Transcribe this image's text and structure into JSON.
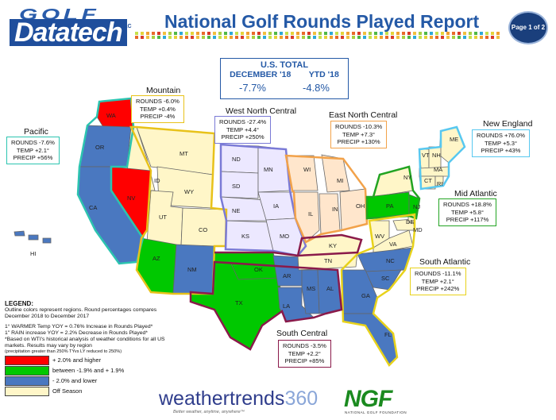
{
  "header": {
    "logo_top": "GOLF",
    "logo_main": "Datatech",
    "logo_llc": "LLC",
    "title": "National Golf Rounds Played Report",
    "page_label": "Page 1 of 2"
  },
  "us_total": {
    "heading": "U.S. TOTAL",
    "month_label": "DECEMBER '18",
    "ytd_label": "YTD '18",
    "month_value": "-7.7%",
    "ytd_value": "-4.8%"
  },
  "regions": {
    "pacific": {
      "name": "Pacific",
      "rounds": "ROUNDS  -7.6%",
      "temp": "TEMP  +2.1°",
      "precip": "PRECIP  +56%",
      "border": "#2cc4b0"
    },
    "mountain": {
      "name": "Mountain",
      "rounds": "ROUNDS  -6.0%",
      "temp": "TEMP  +0.4%",
      "precip": "PRECIP  -4%",
      "border": "#e8c21a"
    },
    "west_north_central": {
      "name": "West North Central",
      "rounds": "ROUNDS  -27.4%",
      "temp": "TEMP  +4.4°",
      "precip": "PRECIP  +250%",
      "border": "#7a7ad6"
    },
    "east_north_central": {
      "name": "East North Central",
      "rounds": "ROUNDS  -10.3%",
      "temp": "TEMP  +7.3°",
      "precip": "PRECIP  +130%",
      "border": "#f2a24a"
    },
    "new_england": {
      "name": "New England",
      "rounds": "ROUNDS  +76.0%",
      "temp": "TEMP  +5.3°",
      "precip": "PRECIP  +43%",
      "border": "#58c8f0"
    },
    "mid_atlantic": {
      "name": "Mid Atlantic",
      "rounds": "ROUNDS  +18.8%",
      "temp": "TEMP  +5.8°",
      "precip": "PRECIP  +117%",
      "border": "#22a422"
    },
    "south_atlantic": {
      "name": "South Atlantic",
      "rounds": "ROUNDS  -11.1%",
      "temp": "TEMP  +2.1°",
      "precip": "PRECIP  +242%",
      "border": "#e8d21a"
    },
    "south_central": {
      "name": "South Central",
      "rounds": "ROUNDS  -3.5%",
      "temp": "TEMP  +2.2°",
      "precip": "PRECIP  +85%",
      "border": "#8a1a4a"
    }
  },
  "state_labels": [
    "WA",
    "OR",
    "CA",
    "NV",
    "ID",
    "MT",
    "WY",
    "UT",
    "CO",
    "AZ",
    "NM",
    "HI",
    "ND",
    "SD",
    "NE",
    "KS",
    "OK",
    "TX",
    "MN",
    "IA",
    "MO",
    "AR",
    "LA",
    "WI",
    "IL",
    "MI",
    "IN",
    "OH",
    "KY",
    "TN",
    "MS",
    "AL",
    "GA",
    "FL",
    "SC",
    "NC",
    "VA",
    "WV",
    "PA",
    "NY",
    "NJ",
    "DE",
    "MD",
    "ME",
    "VT",
    "NH",
    "MA",
    "CT",
    "RI"
  ],
  "legend": {
    "heading": "LEGEND:",
    "line1": "Outline colors represent regions. Round percentages compares",
    "line2": "December 2018 to December 2017",
    "line3": "1° WARMER Temp YOY = 0.76% Increase in Rounds Played*",
    "line4": "1\" RAIN increase YOY = 2.2% Decrease in Rounds Played*",
    "line5": "*Based on WTI's historical analysis of weather conditions for all US",
    "line6": "markets. Results may vary by region",
    "line7": "(precipitation greater than 250% TYvs LY reduced to 250%)",
    "swatches": [
      {
        "color": "#ff0000",
        "label": "+ 2.0% and higher"
      },
      {
        "color": "#00c800",
        "label": "between -1.9% and + 1.9%"
      },
      {
        "color": "#4a78c0",
        "label": "- 2.0% and lower"
      },
      {
        "color": "#fff6c8",
        "label": "Off Season"
      }
    ]
  },
  "footer": {
    "weathertrends_word": "weathertrends",
    "weathertrends_num": "360",
    "weathertrends_tag": "Better weather, anytime, anywhere™",
    "ngf": "NGF",
    "ngf_sub": "NATIONAL GOLF FOUNDATION"
  },
  "colors": {
    "red": "#ff0000",
    "green": "#00c800",
    "blue": "#4a78c0",
    "offseason": "#fff6c8",
    "title_blue": "#2459a6"
  }
}
